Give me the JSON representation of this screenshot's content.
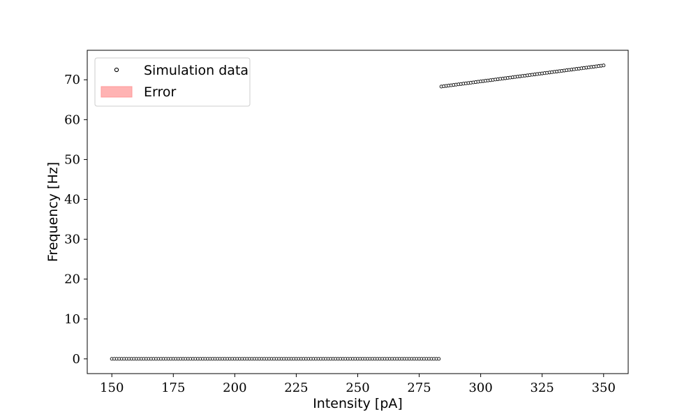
{
  "chart_data": {
    "type": "scatter",
    "xlabel": "Intensity [pA]",
    "ylabel": "Frequency [Hz]",
    "xlim": [
      140,
      360
    ],
    "ylim": [
      -3.7,
      77.4
    ],
    "xticks": [
      150,
      175,
      200,
      225,
      250,
      275,
      300,
      325,
      350
    ],
    "yticks": [
      0,
      10,
      20,
      30,
      40,
      50,
      60,
      70
    ],
    "grid": false,
    "legend": {
      "placement": "top-left",
      "entries": [
        {
          "label": "Simulation data",
          "kind": "marker"
        },
        {
          "label": "Error",
          "kind": "patch"
        }
      ]
    },
    "series": [
      {
        "name": "Simulation data",
        "segments": [
          {
            "x_start": 150,
            "x_end": 283,
            "y_start": 0,
            "y_end": 0
          },
          {
            "x_start": 284,
            "x_end": 350,
            "y_start": 68.3,
            "y_end": 73.6
          }
        ],
        "point_spacing": 1,
        "marker": "open-circle",
        "marker_color": "#000000"
      }
    ],
    "error_color": "#ff9999"
  }
}
